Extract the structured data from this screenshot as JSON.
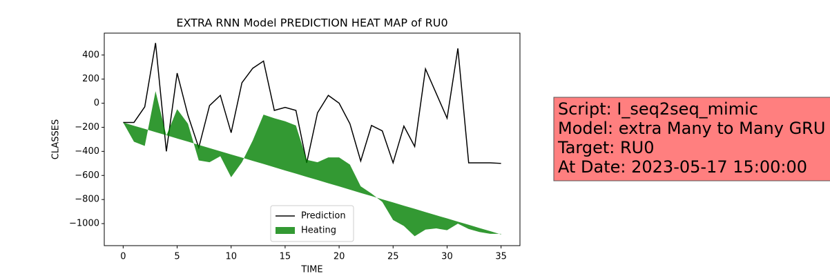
{
  "chart_data": {
    "type": "line",
    "title": "EXTRA RNN Model PREDICTION HEAT MAP of RU0",
    "xlabel": "TIME",
    "ylabel": "CLASSES",
    "x": [
      0,
      1,
      2,
      3,
      4,
      5,
      6,
      7,
      8,
      9,
      10,
      11,
      12,
      13,
      14,
      15,
      16,
      17,
      18,
      19,
      20,
      21,
      22,
      23,
      24,
      25,
      26,
      27,
      28,
      29,
      30,
      31,
      32,
      33,
      34,
      35
    ],
    "series": [
      {
        "name": "Prediction",
        "kind": "line",
        "color": "#000000",
        "values": [
          -160,
          -160,
          -30,
          500,
          -400,
          250,
          -100,
          -370,
          -20,
          65,
          -245,
          170,
          290,
          350,
          -60,
          -35,
          -60,
          -495,
          -80,
          65,
          0,
          -170,
          -480,
          -185,
          -230,
          -495,
          -190,
          -360,
          285,
          80,
          -125,
          455,
          -495,
          -495,
          -495,
          -500
        ]
      },
      {
        "name": "Heating",
        "kind": "fill_between",
        "color": "#008000",
        "alpha": 0.8,
        "y1": [
          -160,
          -187,
          -213,
          -240,
          -266,
          -293,
          -319,
          -346,
          -373,
          -399,
          -426,
          -452,
          -479,
          -505,
          -532,
          -559,
          -585,
          -612,
          -638,
          -665,
          -691,
          -718,
          -745,
          -771,
          -798,
          -824,
          -851,
          -877,
          -904,
          -931,
          -957,
          -984,
          -1010,
          -1037,
          -1063,
          -1090
        ],
        "y2": [
          -160,
          -320,
          -355,
          100,
          -270,
          -50,
          -170,
          -475,
          -490,
          -440,
          -615,
          -490,
          -310,
          -95,
          -125,
          -150,
          -185,
          -470,
          -490,
          -450,
          -450,
          -510,
          -690,
          -750,
          -820,
          -970,
          -1020,
          -1105,
          -1050,
          -1040,
          -1055,
          -1000,
          -1045,
          -1070,
          -1085,
          -1085
        ]
      }
    ],
    "xlim": [
      -1.75,
      36.75
    ],
    "xticks": [
      0,
      5,
      10,
      15,
      20,
      25,
      30,
      35
    ],
    "ylim": [
      -1183,
      582
    ],
    "yticks": [
      {
        "value": -1000,
        "label": "−1000"
      },
      {
        "value": -800,
        "label": "−800"
      },
      {
        "value": -600,
        "label": "−600"
      },
      {
        "value": -400,
        "label": "−400"
      },
      {
        "value": -200,
        "label": "−200"
      },
      0,
      200,
      400
    ],
    "legend": "lower center",
    "annotation": {
      "lines": [
        "Script: I_seq2seq_mimic",
        "Model: extra Many to Many GRU",
        "Target: RU0",
        "At Date: 2023-05-17 15:00:00"
      ],
      "background": "#ff7f7f"
    }
  }
}
